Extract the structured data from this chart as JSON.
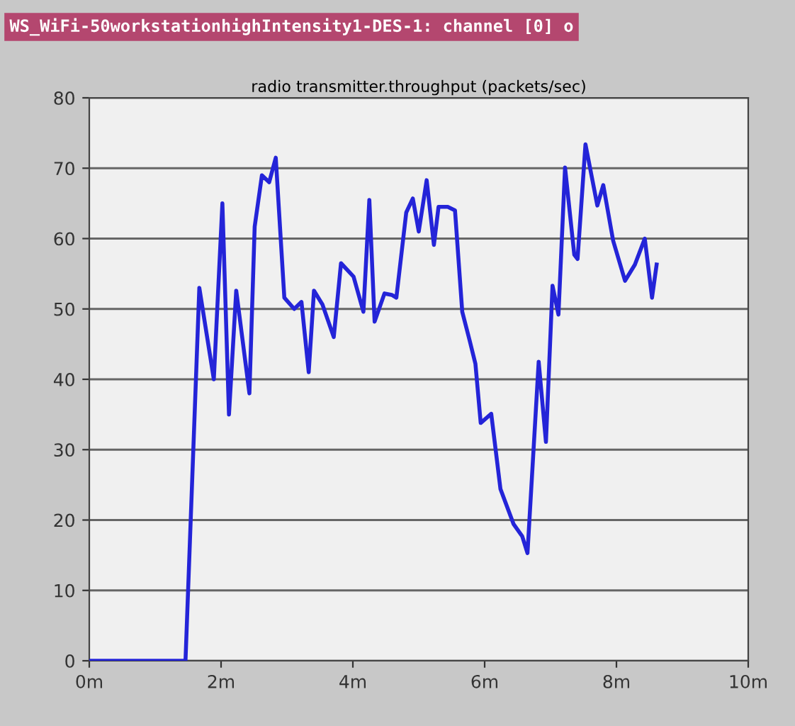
{
  "chart_data": {
    "type": "line",
    "title": "radio transmitter.throughput (packets/sec)",
    "annotations": [
      "WS_WiFi-50workstationhighIntensity1-DES-1: channel [0] o"
    ],
    "x": [
      0,
      1.46,
      1.67,
      1.89,
      2.02,
      2.12,
      2.23,
      2.43,
      2.51,
      2.62,
      2.73,
      2.83,
      2.96,
      3.11,
      3.22,
      3.33,
      3.41,
      3.54,
      3.71,
      3.82,
      4.01,
      4.16,
      4.25,
      4.33,
      4.48,
      4.59,
      4.66,
      4.81,
      4.91,
      5.0,
      5.12,
      5.23,
      5.3,
      5.44,
      5.55,
      5.66,
      5.77,
      5.86,
      5.94,
      6.1,
      6.24,
      6.44,
      6.57,
      6.65,
      6.82,
      6.93,
      7.03,
      7.12,
      7.22,
      7.36,
      7.41,
      7.53,
      7.71,
      7.8,
      7.95,
      8.13,
      8.28,
      8.43,
      8.54,
      8.58,
      8.61
    ],
    "series": [
      {
        "color": "#2424d8",
        "values": [
          0,
          0,
          53,
          40,
          65,
          35,
          52.6,
          38,
          61.7,
          69,
          68,
          71.5,
          51.6,
          50,
          51,
          41,
          52.6,
          50.6,
          46,
          56.5,
          54.6,
          49.6,
          65.5,
          48.2,
          52.2,
          52,
          51.6,
          63.7,
          65.7,
          61,
          68.3,
          59.1,
          64.5,
          64.5,
          64,
          49.6,
          45.6,
          42.2,
          33.8,
          35.1,
          24.4,
          19.4,
          17.7,
          15.3,
          42.5,
          31.1,
          53.3,
          49.2,
          70.1,
          57.7,
          57.1,
          73.4,
          64.7,
          67.6,
          59.7,
          54,
          56.3,
          60,
          51.6,
          54.3,
          56.3
        ]
      }
    ],
    "xlim": [
      0,
      10
    ],
    "xticks": [
      {
        "value": 0,
        "label": "0m"
      },
      {
        "value": 2,
        "label": "2m"
      },
      {
        "value": 4,
        "label": "4m"
      },
      {
        "value": 6,
        "label": "6m"
      },
      {
        "value": 8,
        "label": "8m"
      },
      {
        "value": 10,
        "label": "10m"
      }
    ],
    "ylim": [
      0,
      80
    ],
    "yticks": [
      0,
      10,
      20,
      30,
      40,
      50,
      60,
      70,
      80
    ],
    "grid": "y",
    "line_style": "solid",
    "marker": "none"
  }
}
